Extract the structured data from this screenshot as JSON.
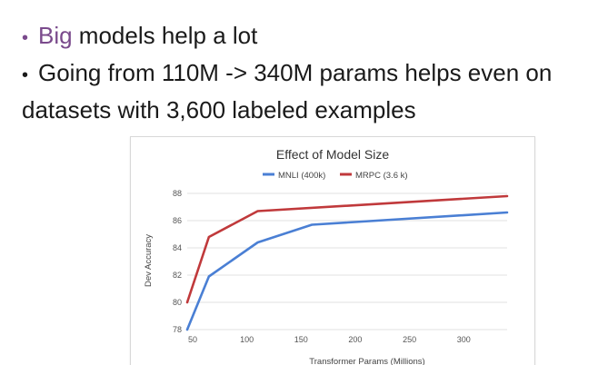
{
  "slide": {
    "bullet1_prefix": "Big",
    "bullet1_rest": " models help a lot",
    "bullet2_line1": "Going from 110M -> 340M params helps even on",
    "bullet2_line2": "datasets with 3,600 labeled examples"
  },
  "colors": {
    "accent": "#7a4a8c",
    "mnli": "#4a7fd4",
    "mrpc": "#c0393b"
  },
  "chart_data": {
    "type": "line",
    "title": "Effect of Model Size",
    "xlabel": "Transformer Params (Millions)",
    "ylabel": "Dev Accuracy",
    "xlim": [
      45,
      340
    ],
    "ylim": [
      78,
      88
    ],
    "xticks": [
      50,
      100,
      150,
      200,
      250,
      300
    ],
    "yticks": [
      78,
      80,
      82,
      84,
      86,
      88
    ],
    "grid": "horizontal",
    "legend_position": "top",
    "series": [
      {
        "name": "MNLI (400k)",
        "color": "#4a7fd4",
        "x": [
          45,
          65,
          110,
          160,
          340
        ],
        "y": [
          78.0,
          81.9,
          84.4,
          85.7,
          86.6
        ]
      },
      {
        "name": "MRPC (3.6 k)",
        "color": "#c0393b",
        "x": [
          45,
          65,
          110,
          340
        ],
        "y": [
          80.0,
          84.8,
          86.7,
          87.8
        ]
      }
    ]
  }
}
